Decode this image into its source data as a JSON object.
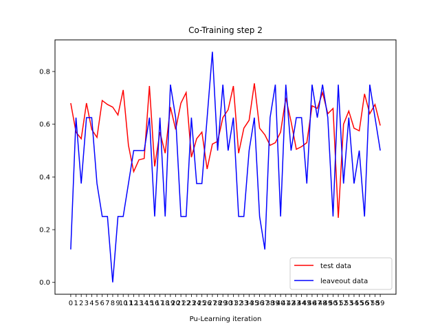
{
  "chart_data": {
    "type": "line",
    "title": "Co-Training step 2",
    "xlabel": "Pu-Learning iteration",
    "ylabel": "",
    "x_ticks": [
      "0",
      "1",
      "2",
      "3",
      "4",
      "5",
      "6",
      "7",
      "8",
      "9",
      "10",
      "11",
      "12",
      "13",
      "14",
      "15",
      "16",
      "17",
      "18",
      "19",
      "20",
      "21",
      "22",
      "23",
      "24",
      "25",
      "26",
      "27",
      "28",
      "29",
      "30",
      "31",
      "32",
      "33",
      "34",
      "35",
      "36",
      "37",
      "38",
      "39",
      "40",
      "41",
      "42",
      "43",
      "44",
      "45",
      "46",
      "47",
      "48",
      "49",
      "50",
      "51",
      "52",
      "53",
      "54",
      "55",
      "56",
      "57",
      "58",
      "59"
    ],
    "xlim": [
      -3,
      62
    ],
    "ylim": [
      -0.045,
      0.92
    ],
    "y_ticks": [
      0.0,
      0.2,
      0.4,
      0.6,
      0.8
    ],
    "y_tick_labels": [
      "0.0",
      "0.2",
      "0.4",
      "0.6",
      "0.8"
    ],
    "grid": false,
    "legend_position": "lower-right",
    "series": [
      {
        "name": "test data",
        "color": "#ff0000",
        "values": [
          0.68,
          0.57,
          0.545,
          0.68,
          0.58,
          0.55,
          0.69,
          0.675,
          0.665,
          0.635,
          0.73,
          0.52,
          0.42,
          0.465,
          0.47,
          0.745,
          0.44,
          0.57,
          0.49,
          0.665,
          0.58,
          0.68,
          0.72,
          0.475,
          0.545,
          0.57,
          0.43,
          0.525,
          0.535,
          0.625,
          0.655,
          0.745,
          0.49,
          0.585,
          0.615,
          0.755,
          0.585,
          0.56,
          0.52,
          0.53,
          0.57,
          0.7,
          0.61,
          0.505,
          0.515,
          0.53,
          0.67,
          0.66,
          0.72,
          0.64,
          0.66,
          0.245,
          0.6,
          0.65,
          0.585,
          0.575,
          0.715,
          0.64,
          0.675,
          0.595
        ]
      },
      {
        "name": "leaveout data",
        "color": "#0000ff",
        "values": [
          0.125,
          0.625,
          0.375,
          0.625,
          0.625,
          0.375,
          0.25,
          0.25,
          0.0,
          0.25,
          0.25,
          0.375,
          0.5,
          0.5,
          0.5,
          0.625,
          0.25,
          0.625,
          0.25,
          0.75,
          0.625,
          0.25,
          0.25,
          0.625,
          0.375,
          0.375,
          0.625,
          0.875,
          0.5,
          0.75,
          0.5,
          0.625,
          0.25,
          0.25,
          0.5,
          0.625,
          0.25,
          0.125,
          0.625,
          0.75,
          0.25,
          0.75,
          0.5,
          0.625,
          0.625,
          0.375,
          0.75,
          0.625,
          0.75,
          0.625,
          0.25,
          0.75,
          0.375,
          0.625,
          0.375,
          0.5,
          0.25,
          0.75,
          0.625,
          0.5
        ]
      }
    ]
  }
}
